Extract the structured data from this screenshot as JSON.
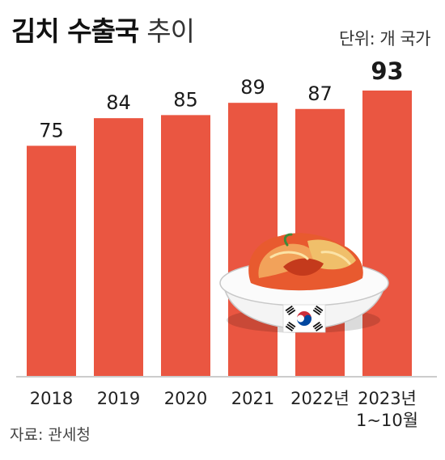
{
  "header": {
    "title_main": "김치 수출국",
    "title_sub": "추이",
    "unit": "단위: 개 국가"
  },
  "footer": {
    "source": "자료: 관세청"
  },
  "colors": {
    "bar": "#ea5641",
    "baseline": "#999999",
    "text": "#1a1a1a"
  },
  "chart_data": {
    "type": "bar",
    "categories": [
      "2018",
      "2019",
      "2020",
      "2021",
      "2022년",
      "2023년\n1~10월"
    ],
    "values": [
      75,
      84,
      85,
      89,
      87,
      93
    ],
    "data_labels": [
      "75",
      "84",
      "85",
      "89",
      "87",
      "93"
    ],
    "highlight_index": 5,
    "ylim": [
      0,
      93
    ],
    "grid": false,
    "legend": "none",
    "illustration": "kimchi-bowl-with-korean-flag"
  }
}
